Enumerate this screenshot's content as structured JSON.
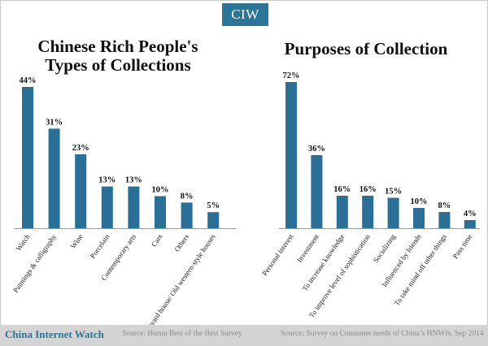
{
  "logo": "CIW",
  "footer": {
    "brand": "China Internet Watch",
    "source_left": "Source: Hurun Best of the Best Survey",
    "source_right": "Source: Survey on Consumer needs of China’s HNWIs, Sep 2014"
  },
  "colors": {
    "bar": "#2a6f97",
    "logo_bg": "#2a7598",
    "axis": "#9a9a9a"
  },
  "chart_data": [
    {
      "type": "bar",
      "title": "Chinese Rich People's Types of Collections",
      "title_lines": [
        "Chinese Rich People's",
        "Types of Collections"
      ],
      "categories": [
        "Watch",
        "Paintings & calligraphy",
        "Wine",
        "Porcelain",
        "Contemporary arts",
        "Cars",
        "Others",
        "Courtyard house/ Old western-style houses"
      ],
      "values": [
        44,
        31,
        23,
        13,
        13,
        10,
        8,
        5
      ],
      "labels": [
        "44%",
        "31%",
        "23%",
        "13%",
        "13%",
        "10%",
        "8%",
        "5%"
      ],
      "unit": "%",
      "ylim": [
        0,
        44
      ],
      "grid": false,
      "legend": "none"
    },
    {
      "type": "bar",
      "title": "Purposes of Collection",
      "title_lines": [
        "Purposes of Collection"
      ],
      "categories": [
        "Personal interest",
        "Investment",
        "To increase knowledge",
        "To improve level of sophistication",
        "Socializing",
        "Influenced by friends",
        "To take mind off other things",
        "Pass time"
      ],
      "values": [
        72,
        36,
        16,
        16,
        15,
        10,
        8,
        4
      ],
      "labels": [
        "72%",
        "36%",
        "16%",
        "16%",
        "15%",
        "10%",
        "8%",
        "4%"
      ],
      "unit": "%",
      "ylim": [
        0,
        72
      ],
      "grid": false,
      "legend": "none"
    }
  ]
}
